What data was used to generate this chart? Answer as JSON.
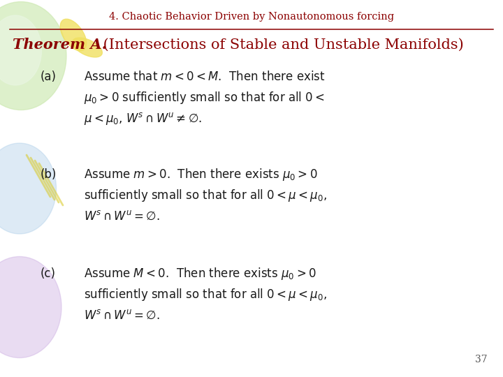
{
  "title": "4. Chaotic Behavior Driven by Nonautonomous forcing",
  "title_color": "#8B0000",
  "title_fontsize": 10.5,
  "line_color": "#8B0000",
  "theorem_text": "Theorem A. (Intersections of Stable and Unstable Manifolds)",
  "theorem_color": "#8B0000",
  "theorem_fontsize": 15,
  "bg_color": "#FFFFFF",
  "page_number": "37",
  "items": [
    {
      "label": "(a)",
      "lines": [
        "Assume that $m < 0 < M$.  Then there exist",
        "$\\mu_0 > 0$ sufficiently small so that for all $0 <$",
        "$\\mu < \\mu_0$, $W^s \\cap W^u \\neq \\emptyset$."
      ]
    },
    {
      "label": "(b)",
      "lines": [
        "Assume $m > 0$.  Then there exists $\\mu_0 > 0$",
        "sufficiently small so that for all $0 < \\mu < \\mu_0$,",
        "$W^s \\cap W^u = \\emptyset$."
      ]
    },
    {
      "label": "(c)",
      "lines": [
        "Assume $M < 0$.  Then there exists $\\mu_0 > 0$",
        "sufficiently small so that for all $0 < \\mu < \\mu_0$,",
        "$W^s \\cap W^u = \\emptyset$."
      ]
    }
  ],
  "item_fontsize": 12,
  "label_fontsize": 12
}
